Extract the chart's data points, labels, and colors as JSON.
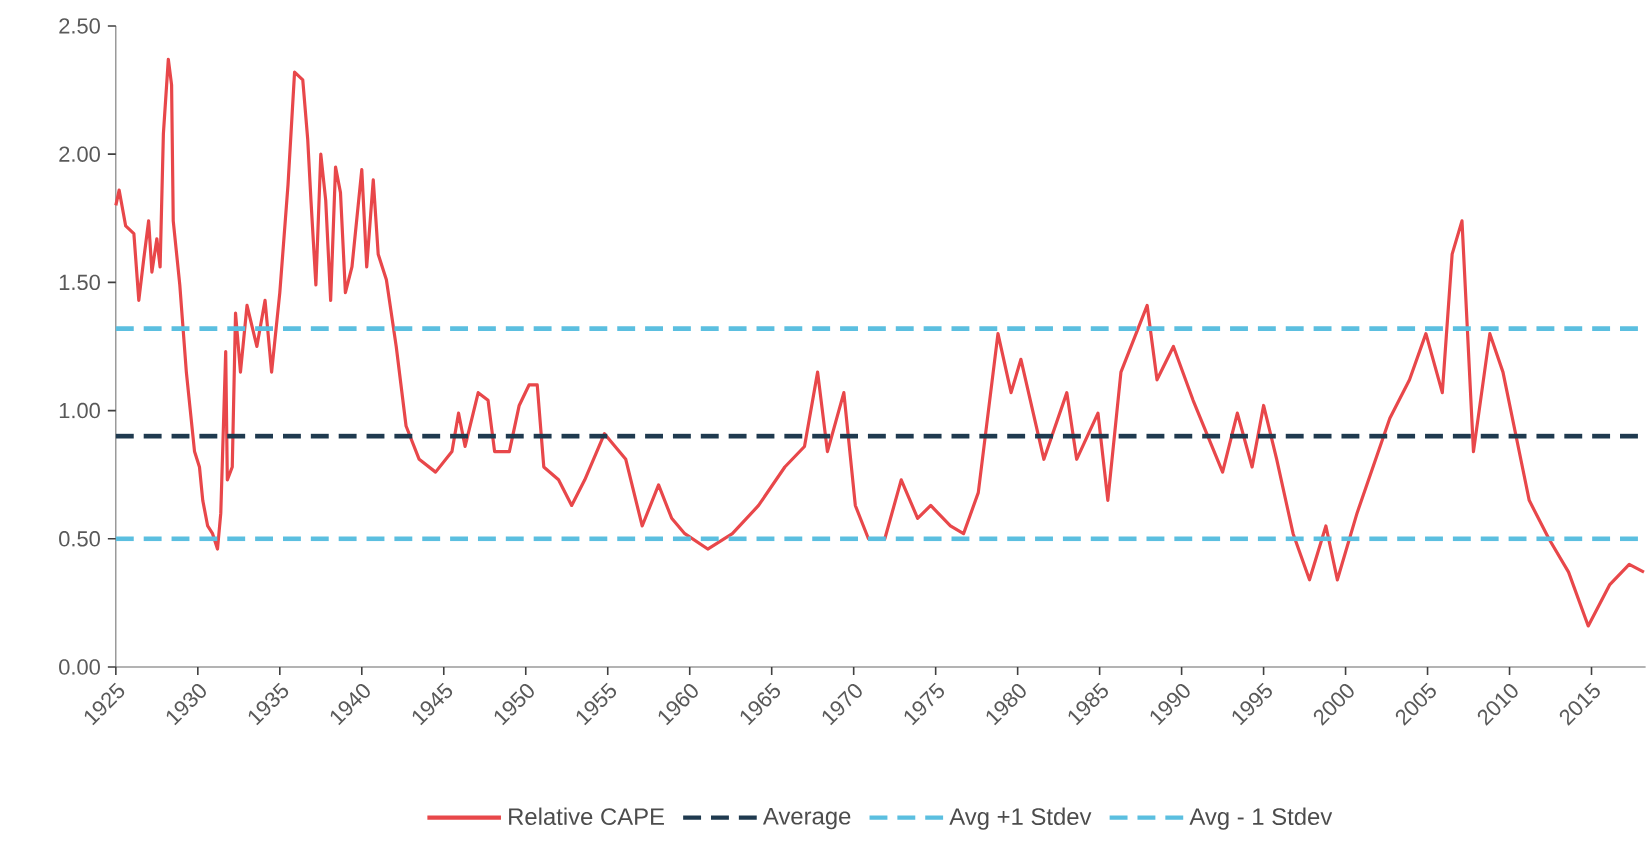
{
  "chart_data": {
    "type": "line",
    "legend": "bottom",
    "grid": false,
    "marker": "none",
    "xlim": [
      1925,
      2018.3
    ],
    "xticks": [
      1925,
      1930,
      1935,
      1940,
      1945,
      1950,
      1955,
      1960,
      1965,
      1970,
      1975,
      1980,
      1985,
      1990,
      1995,
      2000,
      2005,
      2010,
      2015
    ],
    "ylim": [
      0,
      2.5
    ],
    "yticks": [
      {
        "value": 0,
        "label": "0.00"
      },
      {
        "value": 0.5,
        "label": "0.50"
      },
      {
        "value": 1,
        "label": "1.00"
      },
      {
        "value": 1.5,
        "label": "1.50"
      },
      {
        "value": 2,
        "label": "2.00"
      },
      {
        "value": 2.5,
        "label": "2.50"
      }
    ],
    "series": [
      {
        "name": "Relative CAPE",
        "color": "#e8474a",
        "line_style": "solid",
        "x": [
          1925.0,
          1925.2,
          1925.6,
          1926.1,
          1926.4,
          1926.7,
          1927.0,
          1927.2,
          1927.5,
          1927.7,
          1927.9,
          1928.2,
          1928.4,
          1928.5,
          1928.9,
          1929.3,
          1929.8,
          1930.1,
          1930.3,
          1930.6,
          1930.9,
          1931.2,
          1931.4,
          1931.7,
          1931.8,
          1932.1,
          1932.3,
          1932.6,
          1933.0,
          1933.6,
          1934.1,
          1934.5,
          1935.0,
          1935.5,
          1935.9,
          1936.4,
          1936.7,
          1936.9,
          1937.2,
          1937.5,
          1937.8,
          1938.1,
          1938.4,
          1938.7,
          1939.0,
          1939.4,
          1940.0,
          1940.3,
          1940.7,
          1941.0,
          1941.5,
          1942.1,
          1942.7,
          1943.5,
          1944.5,
          1945.5,
          1945.9,
          1946.3,
          1947.1,
          1947.7,
          1948.1,
          1949.0,
          1949.6,
          1950.2,
          1950.7,
          1951.1,
          1952.0,
          1952.8,
          1953.6,
          1954.8,
          1956.1,
          1957.1,
          1958.1,
          1958.9,
          1959.7,
          1961.1,
          1962.6,
          1964.2,
          1965.8,
          1967.0,
          1967.8,
          1968.4,
          1969.4,
          1970.1,
          1970.9,
          1971.9,
          1972.9,
          1973.9,
          1974.7,
          1975.9,
          1976.7,
          1977.6,
          1978.8,
          1979.6,
          1980.2,
          1981.6,
          1983.0,
          1983.6,
          1984.9,
          1985.5,
          1986.3,
          1987.9,
          1988.5,
          1989.5,
          1990.7,
          1992.5,
          1993.4,
          1994.3,
          1995.0,
          1995.8,
          1996.8,
          1997.8,
          1998.8,
          1999.5,
          2000.7,
          2002.7,
          2003.9,
          2004.9,
          2005.9,
          2006.5,
          2007.1,
          2007.8,
          2008.8,
          2009.6,
          2011.2,
          2012.4,
          2013.6,
          2014.8,
          2016.1,
          2017.3,
          2018.2
        ],
        "values": [
          1.8,
          1.86,
          1.72,
          1.69,
          1.43,
          1.59,
          1.74,
          1.54,
          1.67,
          1.56,
          2.08,
          2.37,
          2.27,
          1.74,
          1.49,
          1.15,
          0.84,
          0.78,
          0.65,
          0.55,
          0.52,
          0.46,
          0.6,
          1.23,
          0.73,
          0.78,
          1.38,
          1.15,
          1.41,
          1.25,
          1.43,
          1.15,
          1.46,
          1.88,
          2.32,
          2.29,
          2.06,
          1.82,
          1.49,
          2.0,
          1.82,
          1.43,
          1.95,
          1.85,
          1.46,
          1.56,
          1.94,
          1.56,
          1.9,
          1.61,
          1.51,
          1.25,
          0.94,
          0.81,
          0.76,
          0.84,
          0.99,
          0.86,
          1.07,
          1.04,
          0.84,
          0.84,
          1.02,
          1.1,
          1.1,
          0.78,
          0.73,
          0.63,
          0.73,
          0.91,
          0.81,
          0.55,
          0.71,
          0.58,
          0.52,
          0.46,
          0.52,
          0.63,
          0.78,
          0.86,
          1.15,
          0.84,
          1.07,
          0.63,
          0.5,
          0.5,
          0.73,
          0.58,
          0.63,
          0.55,
          0.52,
          0.68,
          1.3,
          1.07,
          1.2,
          0.81,
          1.07,
          0.81,
          0.99,
          0.65,
          1.15,
          1.41,
          1.12,
          1.25,
          1.04,
          0.76,
          0.99,
          0.78,
          1.02,
          0.81,
          0.52,
          0.34,
          0.55,
          0.34,
          0.6,
          0.97,
          1.12,
          1.3,
          1.07,
          1.61,
          1.74,
          0.84,
          1.3,
          1.15,
          0.65,
          0.5,
          0.37,
          0.16,
          0.32,
          0.4,
          0.37
        ]
      },
      {
        "name": "Average",
        "color": "#1f3a4f",
        "line_style": "dashed",
        "x": [
          1925,
          2018.3
        ],
        "values": [
          0.9,
          0.9
        ]
      },
      {
        "name": "Avg +1 Stdev",
        "color": "#5bbfe0",
        "line_style": "dashed",
        "x": [
          1925,
          2018.3
        ],
        "values": [
          1.32,
          1.32
        ]
      },
      {
        "name": "Avg - 1 Stdev",
        "color": "#5bbfe0",
        "line_style": "dashed",
        "x": [
          1925,
          2018.3
        ],
        "values": [
          0.5,
          0.5
        ]
      }
    ]
  }
}
